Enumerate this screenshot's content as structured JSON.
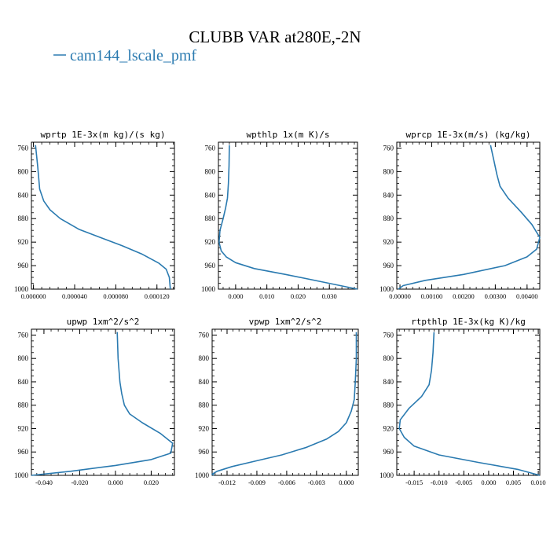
{
  "figure": {
    "title": "CLUBB VAR at280E,-2N",
    "legend_label": "cam144_lscale_pmf",
    "series_color": "#2a7ab0"
  },
  "chart_data": [
    {
      "type": "line",
      "title": "wprtp  1E-3x(m kg)/(s kg)",
      "y_ticks": [
        760,
        800,
        840,
        880,
        920,
        960,
        1000
      ],
      "ylim": [
        1000,
        750
      ],
      "xlim": [
        -2e-06,
        0.000137
      ],
      "x_tick_labels": [
        "0.000000",
        "0.000040",
        "0.000080",
        "0.000120"
      ],
      "x_tick_values": [
        0.0,
        4e-05,
        8e-05,
        0.00012
      ],
      "series": [
        {
          "x": [
            2e-06,
            4e-06,
            6e-06,
            1e-05,
            1.6e-05,
            2.6e-05,
            4.4e-05,
            6.5e-05,
            8.6e-05,
            0.000105,
            0.000122,
            0.000129,
            0.000132,
            0.000133
          ],
          "y": [
            755,
            790,
            830,
            850,
            865,
            880,
            898,
            912,
            926,
            940,
            956,
            966,
            980,
            1000
          ]
        }
      ]
    },
    {
      "type": "line",
      "title": "wpthlp  1x(m K)/s",
      "y_ticks": [
        760,
        800,
        840,
        880,
        920,
        960,
        1000
      ],
      "ylim": [
        1000,
        750
      ],
      "xlim": [
        -0.0055,
        0.039
      ],
      "x_tick_labels": [
        "0.000",
        "0.010",
        "0.020",
        "0.030"
      ],
      "x_tick_values": [
        0.0,
        0.01,
        0.02,
        0.03
      ],
      "series": [
        {
          "x": [
            -0.002,
            -0.0021,
            -0.0023,
            -0.0026,
            -0.0032,
            -0.004,
            -0.005,
            -0.0053,
            -0.0046,
            -0.003,
            0.0,
            0.006,
            0.016,
            0.028,
            0.039
          ],
          "y": [
            755,
            790,
            820,
            845,
            862,
            880,
            900,
            920,
            935,
            945,
            955,
            965,
            975,
            988,
            1000
          ]
        }
      ]
    },
    {
      "type": "line",
      "title": "wprcp  1E-3x(m/s) (kg/kg)",
      "y_ticks": [
        760,
        800,
        840,
        880,
        920,
        960,
        1000
      ],
      "ylim": [
        1000,
        750
      ],
      "xlim": [
        -0.0001,
        0.0044
      ],
      "x_tick_labels": [
        "0.00000",
        "0.00100",
        "0.00200",
        "0.00300",
        "0.00400"
      ],
      "x_tick_values": [
        0.0,
        0.001,
        0.002,
        0.003,
        0.004
      ],
      "series": [
        {
          "x": [
            0.00285,
            0.00295,
            0.00305,
            0.00315,
            0.0034,
            0.0038,
            0.00415,
            0.0044,
            0.0043,
            0.004,
            0.0033,
            0.002,
            0.0008,
            0.0001,
            -5e-05
          ],
          "y": [
            755,
            780,
            805,
            825,
            845,
            868,
            890,
            912,
            932,
            945,
            960,
            975,
            985,
            994,
            1000
          ]
        }
      ]
    },
    {
      "type": "line",
      "title": "upwp  1xm^2/s^2",
      "y_ticks": [
        760,
        800,
        840,
        880,
        920,
        960,
        1000
      ],
      "ylim": [
        1000,
        750
      ],
      "xlim": [
        -0.047,
        0.033
      ],
      "x_tick_labels": [
        "-0.040",
        "-0.020",
        "0.000",
        "0.020"
      ],
      "x_tick_values": [
        -0.04,
        -0.02,
        0.0,
        0.02
      ],
      "series": [
        {
          "x": [
            0.001,
            0.0015,
            0.0025,
            0.0035,
            0.005,
            0.008,
            0.015,
            0.025,
            0.032,
            0.031,
            0.02,
            0.0,
            -0.025,
            -0.047
          ],
          "y": [
            755,
            800,
            840,
            860,
            880,
            895,
            910,
            928,
            945,
            962,
            973,
            983,
            993,
            1000
          ]
        }
      ]
    },
    {
      "type": "line",
      "title": "vpwp  1xm^2/s^2",
      "y_ticks": [
        760,
        800,
        840,
        880,
        920,
        960,
        1000
      ],
      "ylim": [
        1000,
        750
      ],
      "xlim": [
        -0.0135,
        0.0012
      ],
      "x_tick_labels": [
        "-0.012",
        "-0.009",
        "-0.006",
        "-0.003",
        "0.000"
      ],
      "x_tick_values": [
        -0.012,
        -0.009,
        -0.006,
        -0.003,
        0.0
      ],
      "series": [
        {
          "x": [
            0.001,
            0.001,
            0.0009,
            0.0008,
            0.0005,
            0.0,
            -0.0008,
            -0.002,
            -0.004,
            -0.0065,
            -0.009,
            -0.0115,
            -0.013,
            -0.0135,
            -0.0133
          ],
          "y": [
            755,
            800,
            840,
            870,
            890,
            910,
            925,
            938,
            952,
            965,
            975,
            985,
            993,
            998,
            1000
          ]
        }
      ]
    },
    {
      "type": "line",
      "title": "rtpthlp  1E-3x(kg K)/kg",
      "y_ticks": [
        760,
        800,
        840,
        880,
        920,
        960,
        1000
      ],
      "ylim": [
        1000,
        750
      ],
      "xlim": [
        -0.0185,
        0.0103
      ],
      "x_tick_labels": [
        "-0.015",
        "-0.010",
        "-0.005",
        "0.000",
        "0.005",
        "0.010"
      ],
      "x_tick_values": [
        -0.015,
        -0.01,
        -0.005,
        0.0,
        0.005,
        0.01
      ],
      "series": [
        {
          "x": [
            -0.011,
            -0.0112,
            -0.0115,
            -0.012,
            -0.0135,
            -0.016,
            -0.0178,
            -0.018,
            -0.017,
            -0.015,
            -0.01,
            -0.002,
            0.006,
            0.0103
          ],
          "y": [
            755,
            790,
            820,
            845,
            865,
            885,
            905,
            920,
            935,
            950,
            965,
            978,
            990,
            1000
          ]
        }
      ]
    }
  ]
}
